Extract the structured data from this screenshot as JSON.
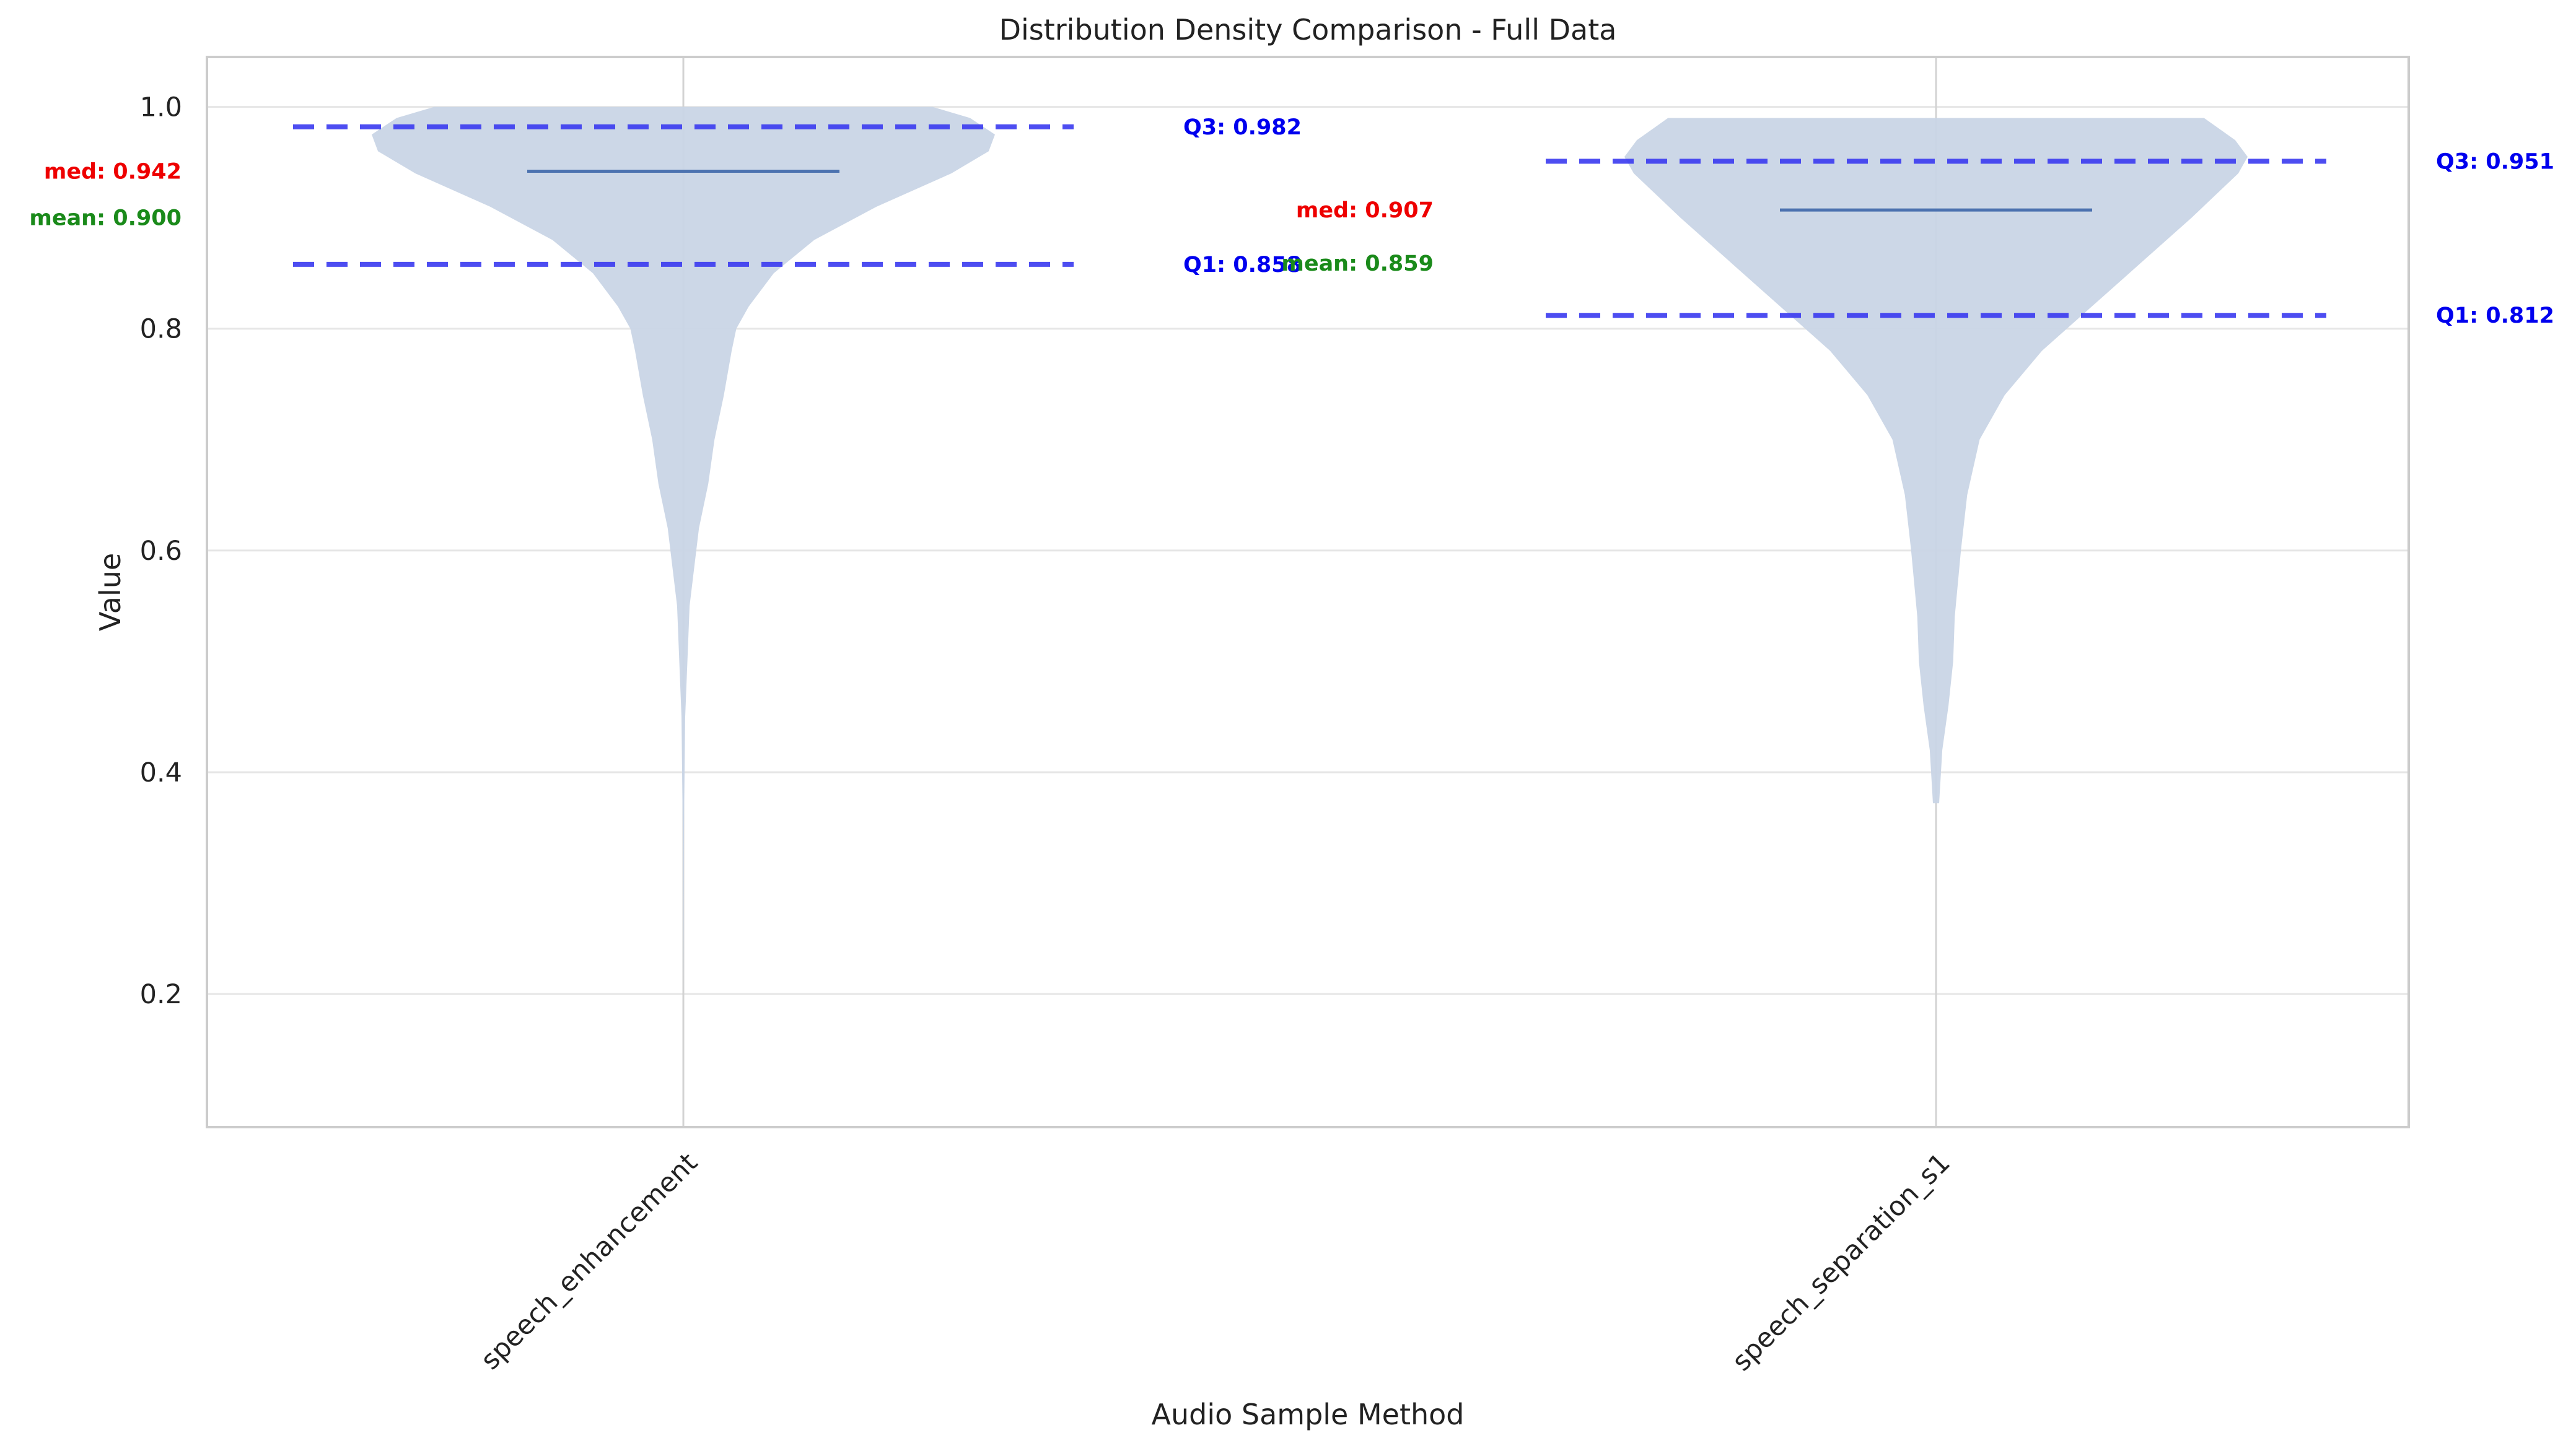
{
  "chart_data": {
    "type": "violin",
    "title": "Distribution Density Comparison - Full Data",
    "xlabel": "Audio Sample Method",
    "ylabel": "Value",
    "ylim": [
      0.08,
      1.045
    ],
    "yticks": [
      0.2,
      0.4,
      0.6,
      0.8,
      1.0
    ],
    "ytick_labels": [
      "0.2",
      "0.4",
      "0.6",
      "0.8",
      "1.0"
    ],
    "grid": true,
    "colors": {
      "violin_fill": "#c9d5e6",
      "median_line": "#4c72b0",
      "quartile_line": "#3a3af0",
      "quartile_text": "#0000ee",
      "median_text": "#ee0000",
      "mean_text": "#1a8a1a",
      "grid": "#e6e6e6",
      "axes": "#cccccc"
    },
    "series": [
      {
        "category": "speech_enhancement",
        "min": 0.123,
        "max": 1.0,
        "median": 0.942,
        "mean": 0.9,
        "q1": 0.858,
        "q3": 0.982,
        "labels": {
          "q3": "Q3: 0.982",
          "q1": "Q1: 0.858",
          "median": "med: 0.942",
          "mean": "mean: 0.900"
        },
        "density": [
          [
            0.123,
            0.0
          ],
          [
            0.2,
            0.0
          ],
          [
            0.35,
            0.002
          ],
          [
            0.45,
            0.006
          ],
          [
            0.55,
            0.02
          ],
          [
            0.62,
            0.05
          ],
          [
            0.66,
            0.08
          ],
          [
            0.7,
            0.1
          ],
          [
            0.74,
            0.13
          ],
          [
            0.78,
            0.155
          ],
          [
            0.8,
            0.17
          ],
          [
            0.82,
            0.21
          ],
          [
            0.85,
            0.29
          ],
          [
            0.88,
            0.42
          ],
          [
            0.91,
            0.62
          ],
          [
            0.94,
            0.86
          ],
          [
            0.96,
            0.98
          ],
          [
            0.975,
            1.0
          ],
          [
            0.99,
            0.92
          ],
          [
            1.0,
            0.8
          ]
        ]
      },
      {
        "category": "speech_separation_s1",
        "min": 0.372,
        "max": 0.99,
        "median": 0.907,
        "mean": 0.859,
        "q1": 0.812,
        "q3": 0.951,
        "labels": {
          "q3": "Q3: 0.951",
          "q1": "Q1: 0.812",
          "median": "med: 0.907",
          "mean": "mean: 0.859"
        },
        "density": [
          [
            0.372,
            0.01
          ],
          [
            0.42,
            0.02
          ],
          [
            0.46,
            0.04
          ],
          [
            0.5,
            0.055
          ],
          [
            0.54,
            0.06
          ],
          [
            0.6,
            0.08
          ],
          [
            0.65,
            0.1
          ],
          [
            0.7,
            0.14
          ],
          [
            0.74,
            0.22
          ],
          [
            0.78,
            0.34
          ],
          [
            0.82,
            0.5
          ],
          [
            0.86,
            0.66
          ],
          [
            0.9,
            0.82
          ],
          [
            0.94,
            0.97
          ],
          [
            0.955,
            1.0
          ],
          [
            0.97,
            0.96
          ],
          [
            0.99,
            0.86
          ]
        ]
      }
    ]
  }
}
